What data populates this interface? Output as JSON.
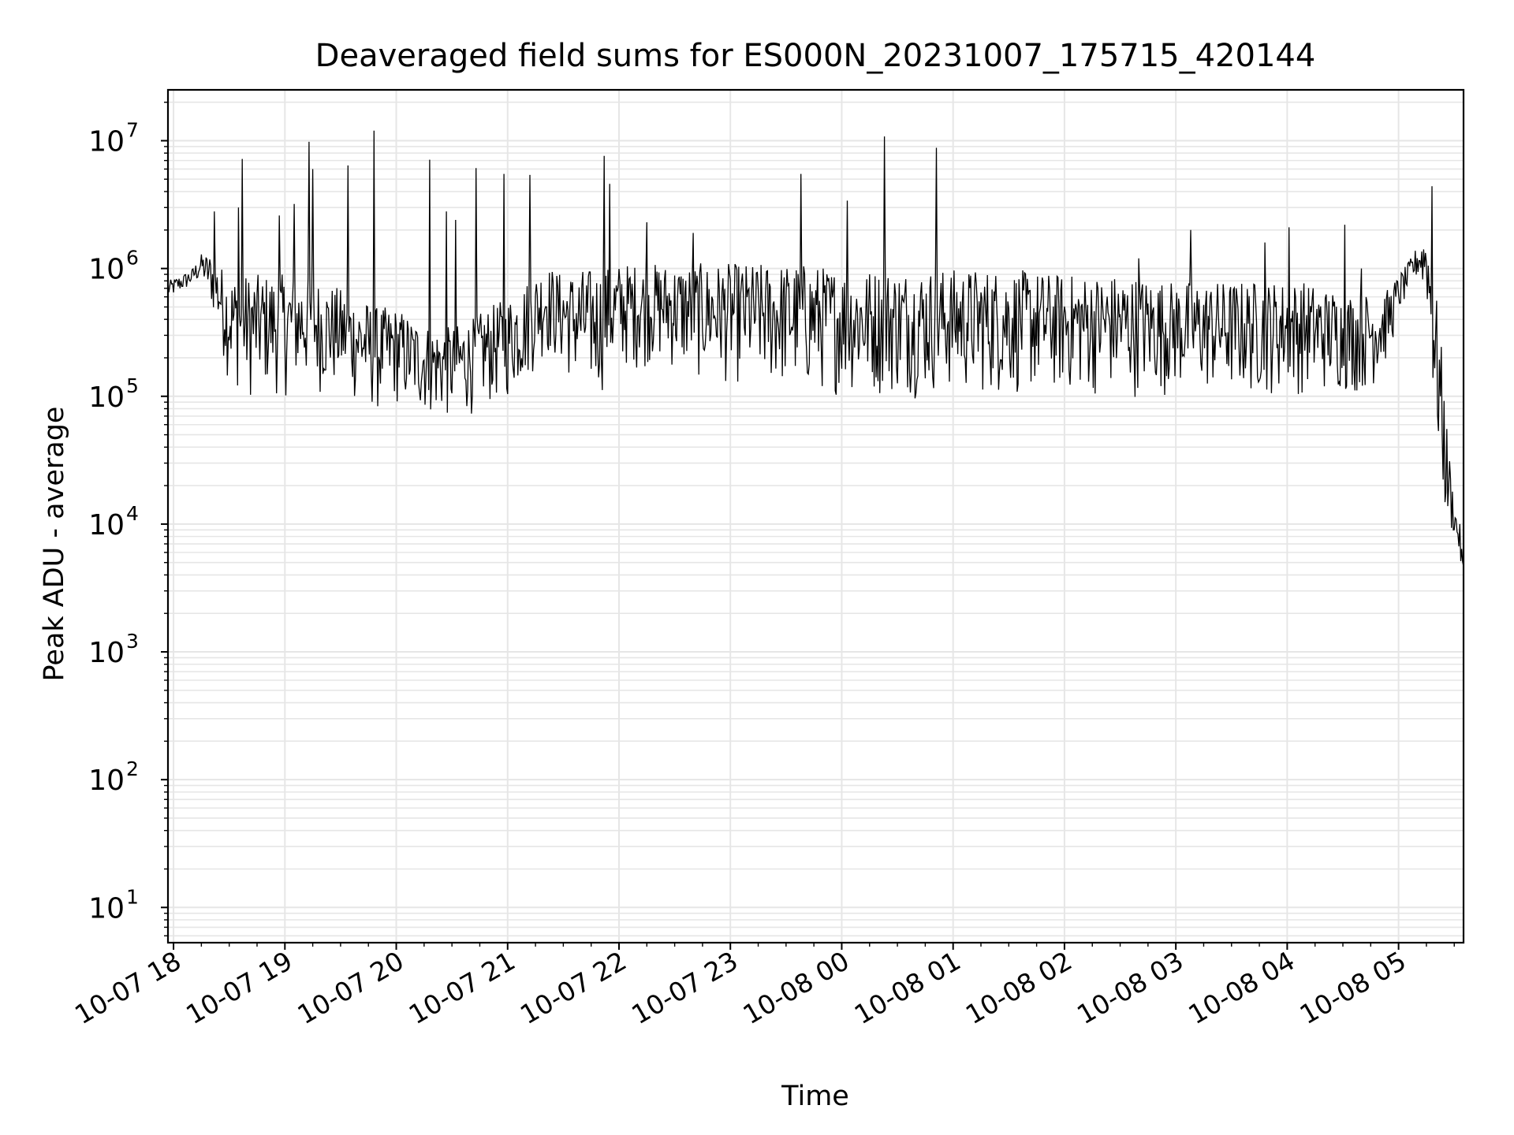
{
  "chart_data": {
    "type": "line",
    "title": "Deaveraged field sums for ES000N_20231007_175715_420144",
    "xlabel": "Time",
    "ylabel": "Peak ADU - average",
    "yscale": "log",
    "ylim": [
      5.3,
      25000000
    ],
    "xlim": [
      "2023-10-07 17:57",
      "2023-10-08 05:35"
    ],
    "grid": true,
    "line_color": "#000000",
    "grid_color": "#e6e6e6",
    "x_ticks": [
      "10-07 18",
      "10-07 19",
      "10-07 20",
      "10-07 21",
      "10-07 22",
      "10-07 23",
      "10-08 00",
      "10-08 01",
      "10-08 02",
      "10-08 03",
      "10-08 04",
      "10-08 05"
    ],
    "y_ticks": [
      {
        "value": 10,
        "base": "10",
        "exp": "1"
      },
      {
        "value": 100,
        "base": "10",
        "exp": "2"
      },
      {
        "value": 1000,
        "base": "10",
        "exp": "3"
      },
      {
        "value": 10000,
        "base": "10",
        "exp": "4"
      },
      {
        "value": 100000,
        "base": "10",
        "exp": "5"
      },
      {
        "value": 1000000,
        "base": "10",
        "exp": "6"
      },
      {
        "value": 10000000,
        "base": "10",
        "exp": "7"
      }
    ],
    "series": [
      {
        "time": [
          "2023-10-07 17:57",
          "2023-10-07 18:05",
          "2023-10-07 18:10",
          "2023-10-07 18:15",
          "2023-10-07 18:20",
          "2023-10-07 18:30",
          "2023-10-07 18:40",
          "2023-10-07 18:50",
          "2023-10-07 19:00",
          "2023-10-07 19:10",
          "2023-10-07 19:20",
          "2023-10-07 19:30",
          "2023-10-07 19:40",
          "2023-10-07 19:50",
          "2023-10-07 20:00",
          "2023-10-07 20:10",
          "2023-10-07 20:20",
          "2023-10-07 20:30",
          "2023-10-07 20:40",
          "2023-10-07 20:50",
          "2023-10-07 21:00",
          "2023-10-07 21:10",
          "2023-10-07 21:20",
          "2023-10-07 21:30",
          "2023-10-07 21:40",
          "2023-10-07 21:50",
          "2023-10-07 22:00",
          "2023-10-07 22:20",
          "2023-10-07 22:40",
          "2023-10-07 23:00",
          "2023-10-07 23:20",
          "2023-10-07 23:40",
          "2023-10-08 00:00",
          "2023-10-08 00:20",
          "2023-10-08 00:40",
          "2023-10-08 01:00",
          "2023-10-08 01:30",
          "2023-10-08 02:00",
          "2023-10-08 02:30",
          "2023-10-08 03:00",
          "2023-10-08 03:30",
          "2023-10-08 04:00",
          "2023-10-08 04:10",
          "2023-10-08 04:20",
          "2023-10-08 04:25",
          "2023-10-08 04:30",
          "2023-10-08 04:35",
          "2023-10-08 04:40",
          "2023-10-08 04:45",
          "2023-10-08 04:50",
          "2023-10-08 04:55",
          "2023-10-08 05:00",
          "2023-10-08 05:05",
          "2023-10-08 05:10",
          "2023-10-08 05:15",
          "2023-10-08 05:18",
          "2023-10-08 05:22",
          "2023-10-08 05:26",
          "2023-10-08 05:30",
          "2023-10-08 05:33",
          "2023-10-08 05:35"
        ],
        "lower": [
          550000,
          650000,
          700000,
          800000,
          500000,
          120000,
          90000,
          100000,
          95000,
          110000,
          100000,
          100000,
          80000,
          70000,
          80000,
          70000,
          65000,
          60000,
          70000,
          80000,
          90000,
          120000,
          200000,
          150000,
          90000,
          100000,
          150000,
          170000,
          130000,
          120000,
          110000,
          100000,
          100000,
          95000,
          95000,
          100000,
          95000,
          100000,
          95000,
          100000,
          95000,
          100000,
          100000,
          100000,
          100000,
          100000,
          100000,
          100000,
          110000,
          130000,
          200000,
          400000,
          600000,
          800000,
          600000,
          100000,
          20000,
          8000,
          8000,
          5000,
          2500
        ],
        "upper": [
          800000,
          900000,
          1000000,
          1300000,
          1300000,
          900000,
          900000,
          900000,
          900000,
          900000,
          800000,
          700000,
          600000,
          500000,
          500000,
          400000,
          350000,
          350000,
          400000,
          500000,
          600000,
          800000,
          1100000,
          900000,
          1000000,
          1000000,
          1100000,
          1100000,
          1100000,
          1100000,
          1100000,
          1100000,
          1000000,
          1000000,
          1000000,
          1000000,
          1000000,
          900000,
          900000,
          800000,
          800000,
          800000,
          800000,
          700000,
          700000,
          650000,
          650000,
          650000,
          650000,
          650000,
          700000,
          900000,
          1100000,
          1500000,
          1900000,
          1200000,
          400000,
          60000,
          14000,
          10000,
          5000
        ],
        "spikes": [
          {
            "time": "2023-10-07 18:22",
            "value": 2800000
          },
          {
            "time": "2023-10-07 18:35",
            "value": 3000000
          },
          {
            "time": "2023-10-07 18:37",
            "value": 7200000
          },
          {
            "time": "2023-10-07 18:57",
            "value": 2600000
          },
          {
            "time": "2023-10-07 19:05",
            "value": 3200000
          },
          {
            "time": "2023-10-07 19:13",
            "value": 9800000
          },
          {
            "time": "2023-10-07 19:15",
            "value": 6000000
          },
          {
            "time": "2023-10-07 19:34",
            "value": 6400000
          },
          {
            "time": "2023-10-07 19:48",
            "value": 12000000
          },
          {
            "time": "2023-10-07 20:18",
            "value": 7100000
          },
          {
            "time": "2023-10-07 20:27",
            "value": 2800000
          },
          {
            "time": "2023-10-07 20:32",
            "value": 2400000
          },
          {
            "time": "2023-10-07 20:43",
            "value": 6100000
          },
          {
            "time": "2023-10-07 20:58",
            "value": 5500000
          },
          {
            "time": "2023-10-07 21:12",
            "value": 5400000
          },
          {
            "time": "2023-10-07 21:52",
            "value": 7600000
          },
          {
            "time": "2023-10-07 21:55",
            "value": 4600000
          },
          {
            "time": "2023-10-07 22:15",
            "value": 2300000
          },
          {
            "time": "2023-10-07 22:40",
            "value": 1900000
          },
          {
            "time": "2023-10-07 23:38",
            "value": 5500000
          },
          {
            "time": "2023-10-08 00:03",
            "value": 3400000
          },
          {
            "time": "2023-10-08 00:23",
            "value": 10800000
          },
          {
            "time": "2023-10-08 00:51",
            "value": 8800000
          },
          {
            "time": "2023-10-08 02:40",
            "value": 1200000
          },
          {
            "time": "2023-10-08 03:08",
            "value": 2000000
          },
          {
            "time": "2023-10-08 03:48",
            "value": 1600000
          },
          {
            "time": "2023-10-08 04:01",
            "value": 2100000
          },
          {
            "time": "2023-10-08 04:31",
            "value": 2200000
          },
          {
            "time": "2023-10-08 04:40",
            "value": 1000000
          },
          {
            "time": "2023-10-08 05:18",
            "value": 4400000
          }
        ]
      }
    ]
  }
}
